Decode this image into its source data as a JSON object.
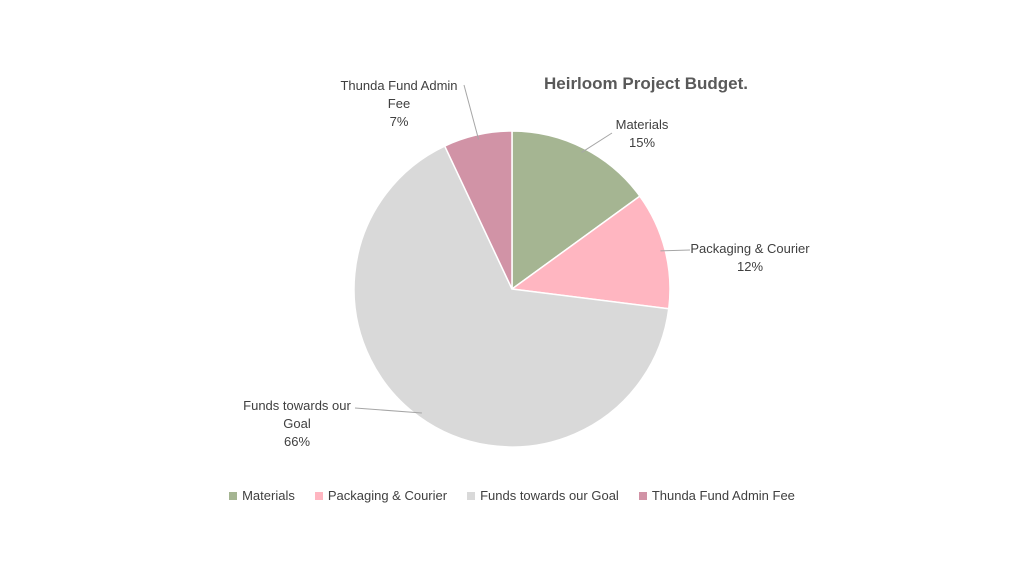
{
  "chart_data": {
    "type": "pie",
    "title": "Heirloom Project Budget.",
    "categories": [
      "Materials",
      "Packaging & Courier",
      "Funds towards our Goal",
      "Thunda Fund Admin Fee"
    ],
    "values": [
      15,
      12,
      66,
      7
    ],
    "value_labels": [
      "15%",
      "12%",
      "66%",
      "7%"
    ],
    "colors": [
      "#a5b592",
      "#ffb6c1",
      "#d9d9d9",
      "#d193a6"
    ],
    "legend": "bottom"
  }
}
